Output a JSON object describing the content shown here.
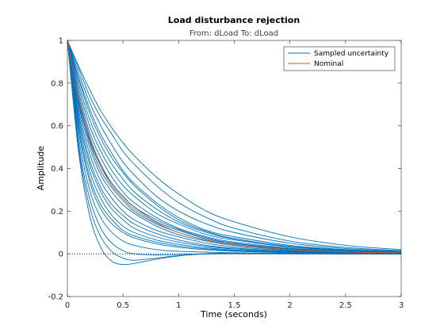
{
  "chart_data": {
    "type": "line",
    "title": "Load disturbance rejection",
    "subtitle": "From: dLoad  To: dLoad",
    "xlabel": "Time (seconds)",
    "ylabel": "Amplitude",
    "xlim": [
      0,
      3
    ],
    "ylim": [
      -0.2,
      1
    ],
    "xticks": [
      0,
      0.5,
      1,
      1.5,
      2,
      2.5,
      3
    ],
    "xtick_labels": [
      "0",
      "0.5",
      "1",
      "1.5",
      "2",
      "2.5",
      "3"
    ],
    "yticks": [
      -0.2,
      0,
      0.2,
      0.4,
      0.6,
      0.8,
      1
    ],
    "ytick_labels": [
      "-0.2",
      "0",
      "0.2",
      "0.4",
      "0.6",
      "0.8",
      "1"
    ],
    "grid": false,
    "legend": {
      "placement": "top-right",
      "entries": [
        {
          "label": "Sampled uncertainty",
          "color": "#0072BD"
        },
        {
          "label": "Nominal",
          "color": "#D95319"
        }
      ]
    },
    "reference_line": {
      "y": 0,
      "style": "dotted",
      "color": "#000000"
    },
    "x": [
      0,
      0.1,
      0.2,
      0.3,
      0.4,
      0.5,
      0.6,
      0.8,
      1.0,
      1.25,
      1.5,
      2.0,
      2.5,
      3.0
    ],
    "series": [
      {
        "group": "Sampled uncertainty",
        "color": "#0072BD",
        "values": [
          1,
          0.87,
          0.74,
          0.64,
          0.56,
          0.48,
          0.42,
          0.32,
          0.24,
          0.17,
          0.12,
          0.06,
          0.03,
          0.015
        ]
      },
      {
        "group": "Sampled uncertainty",
        "color": "#0072BD",
        "values": [
          1,
          0.85,
          0.71,
          0.6,
          0.51,
          0.43,
          0.37,
          0.27,
          0.2,
          0.14,
          0.1,
          0.05,
          0.025,
          0.012
        ]
      },
      {
        "group": "Sampled uncertainty",
        "color": "#0072BD",
        "values": [
          1,
          0.83,
          0.68,
          0.56,
          0.47,
          0.39,
          0.33,
          0.24,
          0.17,
          0.11,
          0.08,
          0.04,
          0.02,
          0.01
        ]
      },
      {
        "group": "Sampled uncertainty",
        "color": "#0072BD",
        "values": [
          1,
          0.8,
          0.63,
          0.51,
          0.42,
          0.35,
          0.29,
          0.21,
          0.15,
          0.1,
          0.07,
          0.035,
          0.018,
          0.009
        ]
      },
      {
        "group": "Sampled uncertainty",
        "color": "#0072BD",
        "values": [
          1,
          0.78,
          0.6,
          0.48,
          0.39,
          0.32,
          0.27,
          0.19,
          0.14,
          0.09,
          0.065,
          0.032,
          0.016,
          0.008
        ]
      },
      {
        "group": "Sampled uncertainty",
        "color": "#0072BD",
        "values": [
          1,
          0.76,
          0.57,
          0.45,
          0.36,
          0.29,
          0.24,
          0.17,
          0.12,
          0.08,
          0.055,
          0.027,
          0.013,
          0.006
        ]
      },
      {
        "group": "Sampled uncertainty",
        "color": "#0072BD",
        "values": [
          1,
          0.74,
          0.55,
          0.42,
          0.33,
          0.27,
          0.22,
          0.15,
          0.11,
          0.07,
          0.048,
          0.023,
          0.011,
          0.005
        ]
      },
      {
        "group": "Sampled uncertainty",
        "color": "#0072BD",
        "values": [
          1,
          0.72,
          0.52,
          0.39,
          0.31,
          0.25,
          0.2,
          0.14,
          0.1,
          0.065,
          0.043,
          0.02,
          0.01,
          0.005
        ]
      },
      {
        "group": "Sampled uncertainty",
        "color": "#0072BD",
        "values": [
          1,
          0.7,
          0.5,
          0.37,
          0.29,
          0.23,
          0.19,
          0.13,
          0.09,
          0.06,
          0.04,
          0.018,
          0.009,
          0.004
        ]
      },
      {
        "group": "Sampled uncertainty",
        "color": "#0072BD",
        "values": [
          1,
          0.68,
          0.47,
          0.34,
          0.26,
          0.2,
          0.16,
          0.11,
          0.08,
          0.05,
          0.033,
          0.015,
          0.007,
          0.003
        ]
      },
      {
        "group": "Sampled uncertainty",
        "color": "#0072BD",
        "values": [
          1,
          0.66,
          0.44,
          0.31,
          0.23,
          0.18,
          0.14,
          0.095,
          0.065,
          0.04,
          0.027,
          0.012,
          0.006,
          0.003
        ]
      },
      {
        "group": "Sampled uncertainty",
        "color": "#0072BD",
        "values": [
          1,
          0.64,
          0.42,
          0.29,
          0.21,
          0.16,
          0.12,
          0.08,
          0.055,
          0.035,
          0.023,
          0.01,
          0.005,
          0.002
        ]
      },
      {
        "group": "Sampled uncertainty",
        "color": "#0072BD",
        "values": [
          1,
          0.62,
          0.39,
          0.26,
          0.18,
          0.13,
          0.1,
          0.065,
          0.045,
          0.028,
          0.018,
          0.008,
          0.004,
          0.002
        ]
      },
      {
        "group": "Sampled uncertainty",
        "color": "#0072BD",
        "values": [
          1,
          0.6,
          0.36,
          0.23,
          0.16,
          0.11,
          0.085,
          0.055,
          0.037,
          0.023,
          0.015,
          0.006,
          0.003,
          0.001
        ]
      },
      {
        "group": "Sampled uncertainty",
        "color": "#0072BD",
        "values": [
          1,
          0.58,
          0.34,
          0.21,
          0.14,
          0.1,
          0.075,
          0.047,
          0.031,
          0.019,
          0.012,
          0.005,
          0.002,
          0.001
        ]
      },
      {
        "group": "Sampled uncertainty",
        "color": "#0072BD",
        "values": [
          1,
          0.55,
          0.3,
          0.17,
          0.1,
          0.06,
          0.04,
          0.02,
          0.012,
          0.008,
          0.005,
          0.002,
          0.001,
          0
        ]
      },
      {
        "group": "Sampled uncertainty",
        "color": "#0072BD",
        "values": [
          1,
          0.52,
          0.26,
          0.12,
          0.05,
          0.015,
          0.0,
          -0.005,
          -0.003,
          0.0,
          0.001,
          0.0,
          0.0,
          0.0
        ]
      },
      {
        "group": "Sampled uncertainty",
        "color": "#0072BD",
        "values": [
          1,
          0.5,
          0.22,
          0.08,
          0.01,
          -0.02,
          -0.03,
          -0.02,
          -0.008,
          0.0,
          0.002,
          0.001,
          0.0,
          0.0
        ]
      },
      {
        "group": "Sampled uncertainty",
        "color": "#0072BD",
        "values": [
          1,
          0.48,
          0.18,
          0.03,
          -0.035,
          -0.05,
          -0.045,
          -0.025,
          -0.01,
          0.001,
          0.003,
          0.001,
          0.0,
          0.0
        ]
      },
      {
        "group": "Sampled uncertainty",
        "color": "#0072BD",
        "values": [
          1,
          0.88,
          0.77,
          0.67,
          0.59,
          0.52,
          0.46,
          0.36,
          0.28,
          0.2,
          0.15,
          0.08,
          0.04,
          0.02
        ]
      },
      {
        "group": "Sampled uncertainty",
        "color": "#0072BD",
        "values": [
          1,
          0.82,
          0.66,
          0.54,
          0.45,
          0.38,
          0.32,
          0.23,
          0.16,
          0.105,
          0.072,
          0.034,
          0.016,
          0.008
        ]
      },
      {
        "group": "Sampled uncertainty",
        "color": "#0072BD",
        "values": [
          1,
          0.71,
          0.53,
          0.41,
          0.33,
          0.27,
          0.22,
          0.16,
          0.115,
          0.075,
          0.05,
          0.024,
          0.012,
          0.006
        ]
      },
      {
        "group": "Nominal",
        "color": "#D95319",
        "values": [
          1,
          0.73,
          0.54,
          0.41,
          0.32,
          0.26,
          0.21,
          0.145,
          0.1,
          0.064,
          0.042,
          0.019,
          0.009,
          0.004
        ]
      }
    ]
  }
}
